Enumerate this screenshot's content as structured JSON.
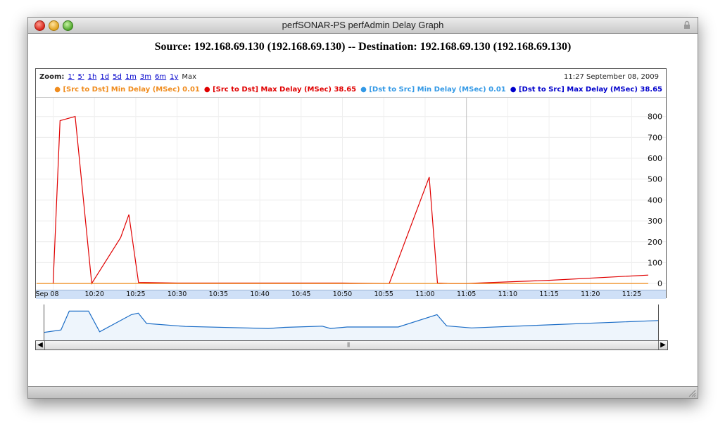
{
  "window": {
    "title": "perfSONAR-PS perfAdmin Delay Graph"
  },
  "heading": "Source: 192.168.69.130 (192.168.69.130) -- Destination: 192.168.69.130 (192.168.69.130)",
  "toolbar": {
    "zoom_label": "Zoom:",
    "zoom_links": [
      "1'",
      "5'",
      "1h",
      "1d",
      "5d",
      "1m",
      "3m",
      "6m",
      "1y"
    ],
    "zoom_selected": "Max",
    "timestamp": "11:27 September 08, 2009"
  },
  "legend": [
    {
      "label": "[Src to Dst] Min Delay (MSec) 0.01",
      "color": "#f08c1e"
    },
    {
      "label": "[Src to Dst] Max Delay (MSec) 38.65",
      "color": "#e00000"
    },
    {
      "label": "[Dst to Src] Min Delay (MSec) 0.01",
      "color": "#3399e6"
    },
    {
      "label": "[Dst to Src] Max Delay (MSec) 38.65",
      "color": "#0000cc"
    }
  ],
  "chart_data": {
    "type": "line",
    "x_tick_labels": [
      "Sep 08",
      "10:20",
      "10:25",
      "10:30",
      "10:35",
      "10:40",
      "10:45",
      "10:50",
      "10:55",
      "11:00",
      "11:05",
      "11:10",
      "11:15",
      "11:20",
      "11:25"
    ],
    "y_ticks": [
      0,
      100,
      200,
      300,
      400,
      500,
      600,
      700,
      800
    ],
    "ylim": [
      -30,
      890
    ],
    "xlim": [
      "10:13:00",
      "11:27:00"
    ],
    "grid": true,
    "legend_position": "top-right",
    "series": [
      {
        "name": "[Src to Dst] Max Delay (MSec)",
        "color": "#e00000",
        "x": [
          "10:15:00",
          "10:15:50",
          "10:17:40",
          "10:19:40",
          "10:23:10",
          "10:24:10",
          "10:25:20",
          "10:30:00",
          "10:40:00",
          "10:50:00",
          "10:55:40",
          "11:00:30",
          "11:01:30",
          "11:03:00",
          "11:05:00",
          "11:15:00",
          "11:27:00"
        ],
        "y": [
          0,
          780,
          800,
          0,
          220,
          330,
          5,
          2,
          2,
          2,
          0,
          510,
          2,
          0,
          0,
          15,
          40
        ]
      },
      {
        "name": "[Src to Dst] Min Delay (MSec)",
        "color": "#f08c1e",
        "x": [
          "10:13:00",
          "11:27:00"
        ],
        "y": [
          0.01,
          0.01
        ]
      }
    ],
    "overview_series": {
      "color": "#1a6cc6",
      "x": [
        "10:13:00",
        "10:15:00",
        "10:16:00",
        "10:18:20",
        "10:19:40",
        "10:23:30",
        "10:24:20",
        "10:25:20",
        "10:30:00",
        "10:40:00",
        "10:42:00",
        "10:46:30",
        "10:47:30",
        "10:49:30",
        "10:55:40",
        "11:00:20",
        "11:01:30",
        "11:04:30",
        "11:27:00"
      ],
      "y": [
        0.2,
        0.28,
        0.92,
        0.92,
        0.22,
        0.8,
        0.85,
        0.5,
        0.4,
        0.33,
        0.37,
        0.41,
        0.33,
        0.38,
        0.38,
        0.8,
        0.42,
        0.35,
        0.6
      ]
    }
  }
}
